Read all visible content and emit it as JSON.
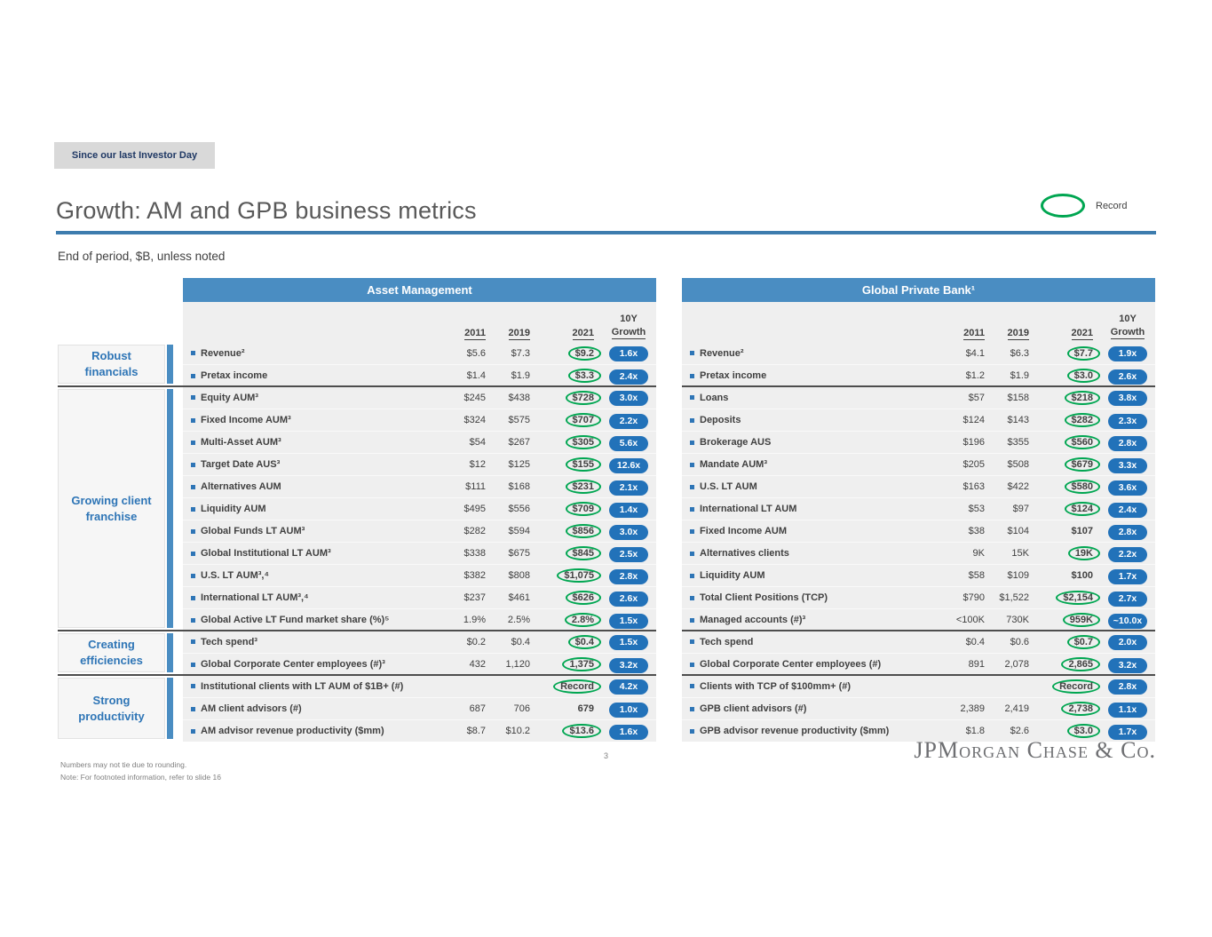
{
  "badge": {
    "label": "Since our last Investor Day"
  },
  "header": {
    "title": "Growth: AM and GPB business metrics",
    "record_legend": "Record",
    "subtitle": "End of period, $B, unless noted"
  },
  "col_headers": {
    "y2011": "2011",
    "y2019": "2019",
    "y2021": "2021",
    "growth_line1": "10Y",
    "growth_line2": "Growth"
  },
  "categories": [
    {
      "id": "robust-financials",
      "label": "Robust financials",
      "rows": 2
    },
    {
      "id": "growing-client-franchise",
      "label": "Growing client franchise",
      "rows": 11
    },
    {
      "id": "creating-efficiencies",
      "label": "Creating efficiencies",
      "rows": 2
    },
    {
      "id": "strong-productivity",
      "label": "Strong productivity",
      "rows": 3
    }
  ],
  "panels": [
    {
      "title": "Asset Management",
      "sections": [
        [
          {
            "label": "Revenue²",
            "v2011": "$5.6",
            "v2019": "$7.3",
            "v2021": "$9.2",
            "circled": true,
            "growth": "1.6x"
          },
          {
            "label": "Pretax income",
            "v2011": "$1.4",
            "v2019": "$1.9",
            "v2021": "$3.3",
            "circled": true,
            "growth": "2.4x"
          }
        ],
        [
          {
            "label": "Equity AUM³",
            "v2011": "$245",
            "v2019": "$438",
            "v2021": "$728",
            "circled": true,
            "growth": "3.0x"
          },
          {
            "label": "Fixed Income AUM³",
            "v2011": "$324",
            "v2019": "$575",
            "v2021": "$707",
            "circled": true,
            "growth": "2.2x"
          },
          {
            "label": "Multi-Asset AUM³",
            "v2011": "$54",
            "v2019": "$267",
            "v2021": "$305",
            "circled": true,
            "growth": "5.6x"
          },
          {
            "label": "Target Date AUS³",
            "v2011": "$12",
            "v2019": "$125",
            "v2021": "$155",
            "circled": true,
            "growth": "12.6x"
          },
          {
            "label": "Alternatives AUM",
            "v2011": "$111",
            "v2019": "$168",
            "v2021": "$231",
            "circled": true,
            "growth": "2.1x"
          },
          {
            "label": "Liquidity AUM",
            "v2011": "$495",
            "v2019": "$556",
            "v2021": "$709",
            "circled": true,
            "growth": "1.4x"
          },
          {
            "label": "Global Funds LT AUM³",
            "v2011": "$282",
            "v2019": "$594",
            "v2021": "$856",
            "circled": true,
            "growth": "3.0x"
          },
          {
            "label": "Global Institutional LT AUM³",
            "v2011": "$338",
            "v2019": "$675",
            "v2021": "$845",
            "circled": true,
            "growth": "2.5x"
          },
          {
            "label": "U.S. LT AUM³,⁴",
            "v2011": "$382",
            "v2019": "$808",
            "v2021": "$1,075",
            "circled": true,
            "growth": "2.8x"
          },
          {
            "label": "International LT AUM³,⁴",
            "v2011": "$237",
            "v2019": "$461",
            "v2021": "$626",
            "circled": true,
            "growth": "2.6x"
          },
          {
            "label": "Global Active LT Fund market share (%)⁵",
            "v2011": "1.9%",
            "v2019": "2.5%",
            "v2021": "2.8%",
            "circled": true,
            "growth": "1.5x"
          }
        ],
        [
          {
            "label": "Tech spend³",
            "v2011": "$0.2",
            "v2019": "$0.4",
            "v2021": "$0.4",
            "circled": true,
            "growth": "1.5x"
          },
          {
            "label": "Global Corporate Center employees (#)³",
            "v2011": "432",
            "v2019": "1,120",
            "v2021": "1,375",
            "circled": true,
            "growth": "3.2x"
          }
        ],
        [
          {
            "label": "Institutional clients with LT AUM of $1B+ (#)",
            "v2011": "",
            "v2019": "",
            "v2021": "Record",
            "circled": true,
            "growth": "4.2x"
          },
          {
            "label": "AM client advisors (#)",
            "v2011": "687",
            "v2019": "706",
            "v2021": "679",
            "circled": false,
            "growth": "1.0x"
          },
          {
            "label": "AM advisor revenue productivity ($mm)",
            "v2011": "$8.7",
            "v2019": "$10.2",
            "v2021": "$13.6",
            "circled": true,
            "growth": "1.6x"
          }
        ]
      ]
    },
    {
      "title": "Global Private Bank¹",
      "sections": [
        [
          {
            "label": "Revenue²",
            "v2011": "$4.1",
            "v2019": "$6.3",
            "v2021": "$7.7",
            "circled": true,
            "growth": "1.9x"
          },
          {
            "label": "Pretax income",
            "v2011": "$1.2",
            "v2019": "$1.9",
            "v2021": "$3.0",
            "circled": true,
            "growth": "2.6x"
          }
        ],
        [
          {
            "label": "Loans",
            "v2011": "$57",
            "v2019": "$158",
            "v2021": "$218",
            "circled": true,
            "growth": "3.8x"
          },
          {
            "label": "Deposits",
            "v2011": "$124",
            "v2019": "$143",
            "v2021": "$282",
            "circled": true,
            "growth": "2.3x"
          },
          {
            "label": "Brokerage AUS",
            "v2011": "$196",
            "v2019": "$355",
            "v2021": "$560",
            "circled": true,
            "growth": "2.8x"
          },
          {
            "label": "Mandate AUM³",
            "v2011": "$205",
            "v2019": "$508",
            "v2021": "$679",
            "circled": true,
            "growth": "3.3x"
          },
          {
            "label": "U.S. LT AUM",
            "v2011": "$163",
            "v2019": "$422",
            "v2021": "$580",
            "circled": true,
            "growth": "3.6x"
          },
          {
            "label": "International LT AUM",
            "v2011": "$53",
            "v2019": "$97",
            "v2021": "$124",
            "circled": true,
            "growth": "2.4x"
          },
          {
            "label": "Fixed Income AUM",
            "v2011": "$38",
            "v2019": "$104",
            "v2021": "$107",
            "circled": false,
            "growth": "2.8x"
          },
          {
            "label": "Alternatives clients",
            "v2011": "9K",
            "v2019": "15K",
            "v2021": "19K",
            "circled": true,
            "growth": "2.2x"
          },
          {
            "label": "Liquidity AUM",
            "v2011": "$58",
            "v2019": "$109",
            "v2021": "$100",
            "circled": false,
            "growth": "1.7x"
          },
          {
            "label": "Total Client Positions (TCP)",
            "v2011": "$790",
            "v2019": "$1,522",
            "v2021": "$2,154",
            "circled": true,
            "growth": "2.7x"
          },
          {
            "label": "Managed accounts (#)³",
            "v2011": "<100K",
            "v2019": "730K",
            "v2021": "959K",
            "circled": true,
            "growth": "~10.0x"
          }
        ],
        [
          {
            "label": "Tech spend",
            "v2011": "$0.4",
            "v2019": "$0.6",
            "v2021": "$0.7",
            "circled": true,
            "growth": "2.0x"
          },
          {
            "label": "Global Corporate Center employees (#)",
            "v2011": "891",
            "v2019": "2,078",
            "v2021": "2,865",
            "circled": true,
            "growth": "3.2x"
          }
        ],
        [
          {
            "label": "Clients with TCP of $100mm+ (#)",
            "v2011": "",
            "v2019": "",
            "v2021": "Record",
            "circled": true,
            "growth": "2.8x"
          },
          {
            "label": "GPB client advisors (#)",
            "v2011": "2,389",
            "v2019": "2,419",
            "v2021": "2,738",
            "circled": true,
            "growth": "1.1x"
          },
          {
            "label": "GPB advisor revenue productivity ($mm)",
            "v2011": "$1.8",
            "v2019": "$2.6",
            "v2021": "$3.0",
            "circled": true,
            "growth": "1.7x"
          }
        ]
      ]
    }
  ],
  "footer": {
    "note1": "Numbers may not tie due to rounding.",
    "note2": "Note: For footnoted information, refer to slide 16",
    "page_number": "3",
    "logo": "JPMorgan Chase & Co."
  },
  "colors": {
    "accent_blue": "#4a8dc2",
    "rule_blue": "#3d7cae",
    "pill_blue": "#2272b9",
    "record_green": "#00a651",
    "category_blue": "#2e75b6",
    "badge_gray": "#d9d9d9",
    "row_gray": "#efefef"
  }
}
